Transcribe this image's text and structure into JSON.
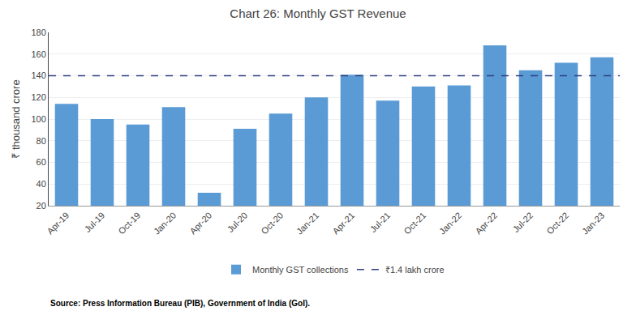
{
  "chart_data": {
    "type": "bar",
    "title": "Chart 26: Monthly GST Revenue",
    "ylabel": "₹ thousand crore",
    "source": "Source: Press Information Bureau (PIB), Government of India (GoI).",
    "categories": [
      "Apr-19",
      "Jul-19",
      "Oct-19",
      "Jan-20",
      "Apr-20",
      "Jul-20",
      "Oct-20",
      "Jan-21",
      "Apr-21",
      "Jul-21",
      "Oct-21",
      "Jan-22",
      "Apr-22",
      "Jul-22",
      "Oct-22",
      "Jan-23"
    ],
    "series": [
      {
        "name": "Monthly GST collections",
        "color": "#5B9BD5",
        "values": [
          114,
          100,
          95,
          111,
          32,
          91,
          105,
          120,
          141,
          117,
          130,
          131,
          168,
          145,
          152,
          157
        ]
      }
    ],
    "reference_line": {
      "name": "₹1.4 lakh crore",
      "value": 140,
      "color": "#2F3F7F",
      "line_style": "dashed"
    },
    "ylim": [
      20,
      180
    ],
    "yticks": [
      20,
      40,
      60,
      80,
      100,
      120,
      140,
      160,
      180
    ],
    "grid": true,
    "legend": "bottom"
  }
}
